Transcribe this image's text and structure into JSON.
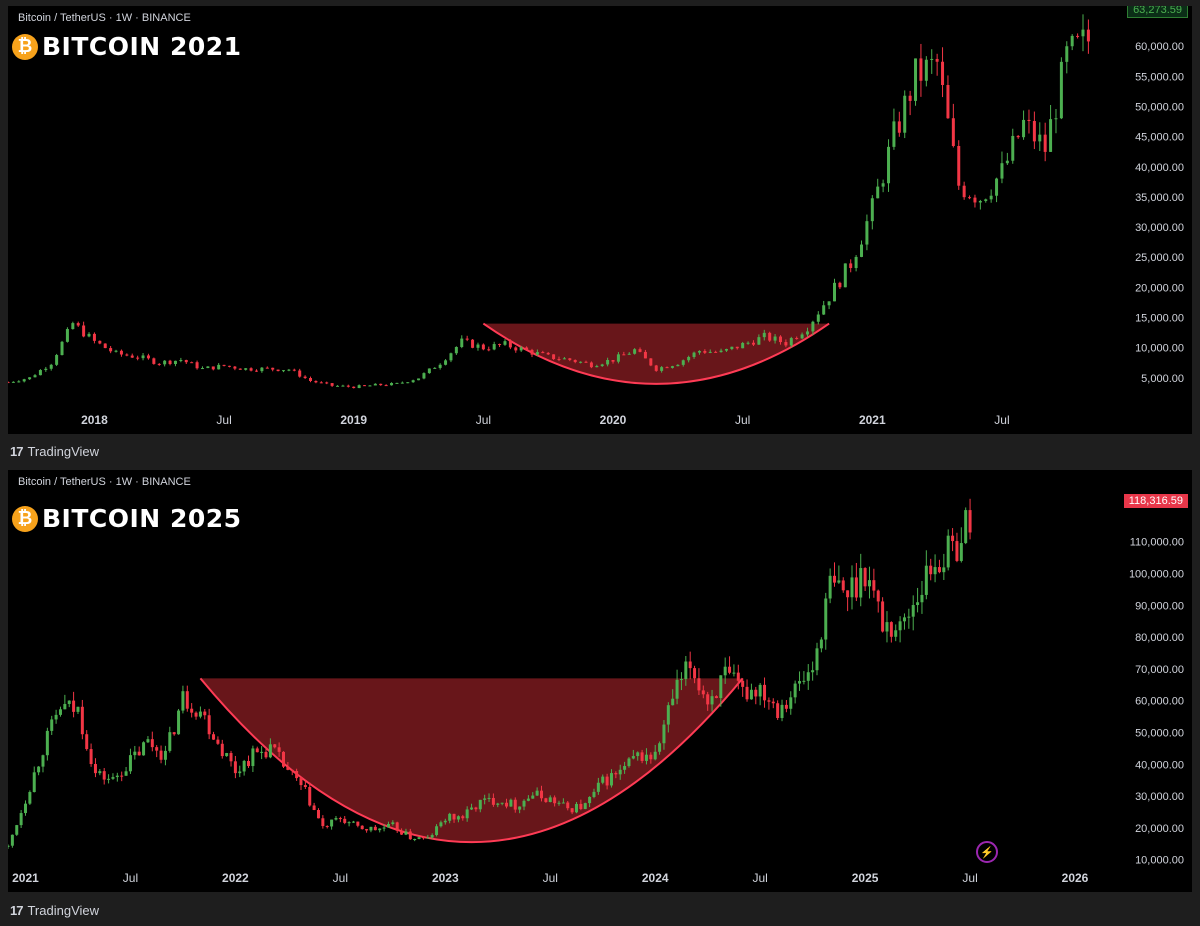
{
  "charts": [
    {
      "symbol": "Bitcoin / TetherUS · 1W · BINANCE",
      "title": "BITCOIN  2021",
      "coin_glyph": "₿",
      "last_price": "63,273.59",
      "brand": "TradingView"
    },
    {
      "symbol": "Bitcoin / TetherUS · 1W · BINANCE",
      "title": "BITCOIN  2025",
      "coin_glyph": "₿",
      "last_price": "118,316.59",
      "brand": "TradingView"
    }
  ],
  "colors": {
    "up": "#26a69a",
    "up_green": "#4caf50",
    "down": "#f23645",
    "cup_fill": "#7a1a1f",
    "cup_stroke": "#ff3b55"
  },
  "chart_data": [
    {
      "type": "line",
      "title": "BITCOIN  2021",
      "ylabel": "",
      "ylim": [
        0,
        66000
      ],
      "xlim": [
        "2017-09",
        "2021-12"
      ],
      "y_ticks": [
        "5,000.00",
        "10,000.00",
        "15,000.00",
        "20,000.00",
        "25,000.00",
        "30,000.00",
        "35,000.00",
        "40,000.00",
        "45,000.00",
        "50,000.00",
        "55,000.00",
        "60,000.00"
      ],
      "x_ticks": [
        "2018",
        "Jul",
        "2019",
        "Jul",
        "2020",
        "Jul",
        "2021",
        "Jul"
      ],
      "series": [
        {
          "x": [
            "2017-09",
            "2017-10",
            "2017-11",
            "2017-12",
            "2018-01",
            "2018-02",
            "2018-03",
            "2018-04",
            "2018-05",
            "2018-06",
            "2018-07",
            "2018-08",
            "2018-09",
            "2018-10",
            "2018-11",
            "2018-12",
            "2019-01",
            "2019-02",
            "2019-03",
            "2019-04",
            "2019-05",
            "2019-06",
            "2019-07",
            "2019-08",
            "2019-09",
            "2019-10",
            "2019-11",
            "2019-12",
            "2020-01",
            "2020-02",
            "2020-03",
            "2020-04",
            "2020-05",
            "2020-06",
            "2020-07",
            "2020-08",
            "2020-09",
            "2020-10",
            "2020-11",
            "2020-12",
            "2021-01",
            "2021-02",
            "2021-03",
            "2021-04",
            "2021-05",
            "2021-06",
            "2021-07",
            "2021-08",
            "2021-09",
            "2021-10",
            "2021-11"
          ],
          "values": [
            4300,
            5000,
            7500,
            14000,
            11000,
            9000,
            8500,
            7500,
            8000,
            6500,
            7000,
            6500,
            6500,
            6400,
            4500,
            3700,
            3500,
            3800,
            4000,
            5000,
            7500,
            11000,
            10000,
            10500,
            9500,
            8500,
            8000,
            7200,
            8000,
            9600,
            6500,
            7500,
            9500,
            9200,
            10500,
            11800,
            10800,
            13500,
            18500,
            24000,
            33000,
            45000,
            55000,
            57000,
            37000,
            35000,
            39000,
            47000,
            43000,
            58000,
            61000
          ]
        }
      ],
      "cup": {
        "rim_price": 14000,
        "bottom_price": 4000,
        "start": "2019-07",
        "end": "2020-11"
      }
    },
    {
      "type": "line",
      "title": "BITCOIN  2025",
      "ylabel": "",
      "ylim": [
        8000,
        125000
      ],
      "xlim": [
        "2020-12",
        "2026-03"
      ],
      "y_ticks": [
        "10,000.00",
        "20,000.00",
        "30,000.00",
        "40,000.00",
        "50,000.00",
        "60,000.00",
        "70,000.00",
        "80,000.00",
        "90,000.00",
        "100,000.00",
        "110,000.00"
      ],
      "x_ticks": [
        "2021",
        "Jul",
        "2022",
        "Jul",
        "2023",
        "Jul",
        "2024",
        "Jul",
        "2025",
        "Jul",
        "2026"
      ],
      "series": [
        {
          "x": [
            "2020-12",
            "2021-01",
            "2021-02",
            "2021-03",
            "2021-04",
            "2021-05",
            "2021-06",
            "2021-07",
            "2021-08",
            "2021-09",
            "2021-10",
            "2021-11",
            "2021-12",
            "2022-01",
            "2022-02",
            "2022-03",
            "2022-04",
            "2022-05",
            "2022-06",
            "2022-07",
            "2022-08",
            "2022-09",
            "2022-10",
            "2022-11",
            "2022-12",
            "2023-01",
            "2023-02",
            "2023-03",
            "2023-04",
            "2023-05",
            "2023-06",
            "2023-07",
            "2023-08",
            "2023-09",
            "2023-10",
            "2023-11",
            "2023-12",
            "2024-01",
            "2024-02",
            "2024-03",
            "2024-04",
            "2024-05",
            "2024-06",
            "2024-07",
            "2024-08",
            "2024-09",
            "2024-10",
            "2024-11",
            "2024-12",
            "2025-01",
            "2025-02",
            "2025-03",
            "2025-04",
            "2025-05",
            "2025-06",
            "2025-07"
          ],
          "values": [
            14000,
            29000,
            45000,
            58000,
            57000,
            37000,
            35000,
            41000,
            47000,
            43000,
            61000,
            57000,
            47000,
            38000,
            43000,
            45000,
            38000,
            31000,
            20000,
            23000,
            20000,
            19500,
            20500,
            17000,
            16500,
            23000,
            23500,
            28000,
            29000,
            27000,
            30500,
            29000,
            26000,
            27000,
            34500,
            37500,
            42500,
            42500,
            61000,
            71000,
            60000,
            67500,
            62500,
            64500,
            58000,
            63500,
            70000,
            96000,
            93500,
            102000,
            84500,
            82500,
            94000,
            104000,
            107000,
            118300
          ]
        }
      ],
      "cup": {
        "rim_price": 67000,
        "bottom_price": 15500,
        "start": "2021-11",
        "end": "2024-06"
      }
    }
  ]
}
